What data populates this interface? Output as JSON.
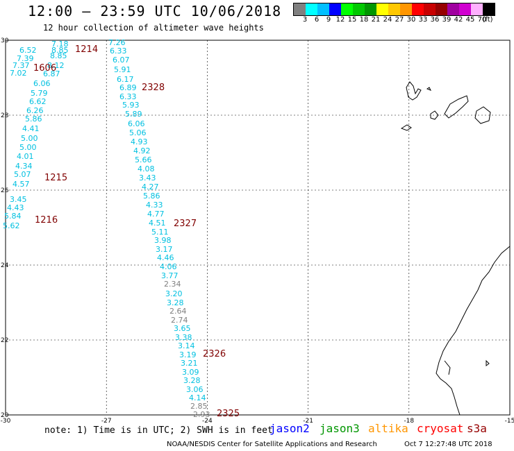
{
  "header": {
    "title": "12:00 — 23:59 UTC 10/06/2018",
    "subtitle": "12 hour collection of altimeter wave heights"
  },
  "legend": {
    "colors": [
      "#808080",
      "#00ffff",
      "#00bfff",
      "#0000ff",
      "#00ff00",
      "#00c800",
      "#009600",
      "#ffff00",
      "#ffc800",
      "#ff9600",
      "#ff0000",
      "#c80000",
      "#960000",
      "#a000a0",
      "#d000d0",
      "#ffb0ff",
      "#000000"
    ],
    "labels": [
      "3",
      "6",
      "9",
      "12",
      "15",
      "18",
      "21",
      "24",
      "27",
      "30",
      "33",
      "36",
      "39",
      "42",
      "45",
      "70",
      "(ft)"
    ]
  },
  "map": {
    "lon_labels": [
      "-30",
      "-27",
      "-24",
      "-21",
      "-18",
      "-15"
    ],
    "lat_labels": [
      "30",
      "28",
      "26",
      "24",
      "22",
      "20"
    ],
    "lon_range": [
      -30,
      -15
    ],
    "lat_range": [
      20,
      30
    ]
  },
  "passes": [
    "1214",
    "1215",
    "1216",
    "1606",
    "2328",
    "2327",
    "2326",
    "2325"
  ],
  "wave_readings_left": [
    {
      "v": "7.18",
      "c": "#00c0e0"
    },
    {
      "v": "6.52",
      "c": "#00c0e0"
    },
    {
      "v": "8.85",
      "c": "#00c0e0"
    },
    {
      "v": "8.85",
      "c": "#00c0e0"
    },
    {
      "v": "7.39",
      "c": "#00c0e0"
    },
    {
      "v": "8.12",
      "c": "#00c0e0"
    },
    {
      "v": "7.37",
      "c": "#00c0e0"
    },
    {
      "v": "7.02",
      "c": "#00c0e0"
    },
    {
      "v": "6.87",
      "c": "#00c0e0"
    },
    {
      "v": "6.06",
      "c": "#00c0e0"
    },
    {
      "v": "5.79",
      "c": "#00c0e0"
    },
    {
      "v": "6.62",
      "c": "#00c0e0"
    },
    {
      "v": "6.26",
      "c": "#00c0e0"
    },
    {
      "v": "5.86",
      "c": "#00c0e0"
    },
    {
      "v": "4.41",
      "c": "#00c0e0"
    },
    {
      "v": "5.00",
      "c": "#00c0e0"
    },
    {
      "v": "5.00",
      "c": "#00c0e0"
    },
    {
      "v": "4.01",
      "c": "#00c0e0"
    },
    {
      "v": "4.34",
      "c": "#00c0e0"
    },
    {
      "v": "5.07",
      "c": "#00c0e0"
    },
    {
      "v": "4.57",
      "c": "#00c0e0"
    },
    {
      "v": "3.45",
      "c": "#00c0e0"
    },
    {
      "v": "4.43",
      "c": "#00c0e0"
    },
    {
      "v": "5.84",
      "c": "#00c0e0"
    },
    {
      "v": "5.62",
      "c": "#00c0e0"
    }
  ],
  "wave_readings_right": [
    {
      "v": "7.26",
      "c": "#00c0e0"
    },
    {
      "v": "6.33",
      "c": "#00c0e0"
    },
    {
      "v": "6.07",
      "c": "#00c0e0"
    },
    {
      "v": "5.91",
      "c": "#00c0e0"
    },
    {
      "v": "6.17",
      "c": "#00c0e0"
    },
    {
      "v": "6.89",
      "c": "#00c0e0"
    },
    {
      "v": "6.33",
      "c": "#00c0e0"
    },
    {
      "v": "5.93",
      "c": "#00c0e0"
    },
    {
      "v": "5.89",
      "c": "#00c0e0"
    },
    {
      "v": "6.06",
      "c": "#00c0e0"
    },
    {
      "v": "5.06",
      "c": "#00c0e0"
    },
    {
      "v": "4.93",
      "c": "#00c0e0"
    },
    {
      "v": "4.92",
      "c": "#00c0e0"
    },
    {
      "v": "5.66",
      "c": "#00c0e0"
    },
    {
      "v": "4.08",
      "c": "#00c0e0"
    },
    {
      "v": "3.43",
      "c": "#00c0e0"
    },
    {
      "v": "4.27",
      "c": "#00c0e0"
    },
    {
      "v": "5.86",
      "c": "#00c0e0"
    },
    {
      "v": "4.33",
      "c": "#00c0e0"
    },
    {
      "v": "4.77",
      "c": "#00c0e0"
    },
    {
      "v": "4.51",
      "c": "#00c0e0"
    },
    {
      "v": "5.11",
      "c": "#00c0e0"
    },
    {
      "v": "3.98",
      "c": "#00c0e0"
    },
    {
      "v": "3.17",
      "c": "#00c0e0"
    },
    {
      "v": "4.46",
      "c": "#00c0e0"
    },
    {
      "v": "4.06",
      "c": "#00c0e0"
    },
    {
      "v": "3.77",
      "c": "#00c0e0"
    },
    {
      "v": "2.34",
      "c": "#808080"
    },
    {
      "v": "3.20",
      "c": "#00c0e0"
    },
    {
      "v": "3.28",
      "c": "#00c0e0"
    },
    {
      "v": "2.64",
      "c": "#808080"
    },
    {
      "v": "2.74",
      "c": "#808080"
    },
    {
      "v": "3.65",
      "c": "#00c0e0"
    },
    {
      "v": "3.38",
      "c": "#00c0e0"
    },
    {
      "v": "3.14",
      "c": "#00c0e0"
    },
    {
      "v": "3.19",
      "c": "#00c0e0"
    },
    {
      "v": "3.21",
      "c": "#00c0e0"
    },
    {
      "v": "3.09",
      "c": "#00c0e0"
    },
    {
      "v": "3.28",
      "c": "#00c0e0"
    },
    {
      "v": "3.06",
      "c": "#00c0e0"
    },
    {
      "v": "4.14",
      "c": "#00c0e0"
    },
    {
      "v": "2.85",
      "c": "#808080"
    },
    {
      "v": "2.93",
      "c": "#808080"
    }
  ],
  "footer": {
    "note": "note:  1) Time is in UTC;  2) SWH is in feet",
    "missions": [
      {
        "name": "jason2",
        "color": "#0000ff"
      },
      {
        "name": "jason3",
        "color": "#009600"
      },
      {
        "name": "altika",
        "color": "#ff9600"
      },
      {
        "name": "cryosat",
        "color": "#ff0000"
      },
      {
        "name": "s3a",
        "color": "#960000"
      }
    ],
    "credit": "NOAA/NESDIS Center for Satellite Applications and Research",
    "timestamp": "Oct  7 12:27:48 UTC 2018"
  }
}
